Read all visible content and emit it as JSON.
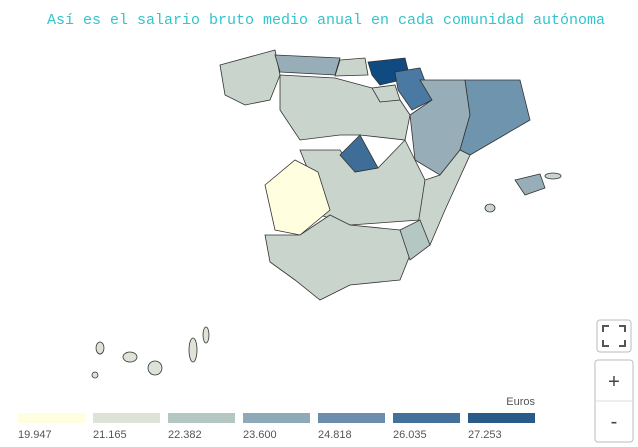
{
  "title": "Así es el salario bruto medio anual en cada comunidad autónoma",
  "legend": {
    "unit": "Euros",
    "items": [
      {
        "label": "19.947",
        "color": "#ffffe0"
      },
      {
        "label": "21.165",
        "color": "#dde3d7"
      },
      {
        "label": "22.382",
        "color": "#b5c7c2"
      },
      {
        "label": "23.600",
        "color": "#8ea9b7"
      },
      {
        "label": "24.818",
        "color": "#6a8eab"
      },
      {
        "label": "26.035",
        "color": "#43719b"
      },
      {
        "label": "27.253",
        "color": "#2a5a87"
      }
    ]
  },
  "controls": {
    "zoom_in": "+",
    "zoom_out": "-"
  }
}
